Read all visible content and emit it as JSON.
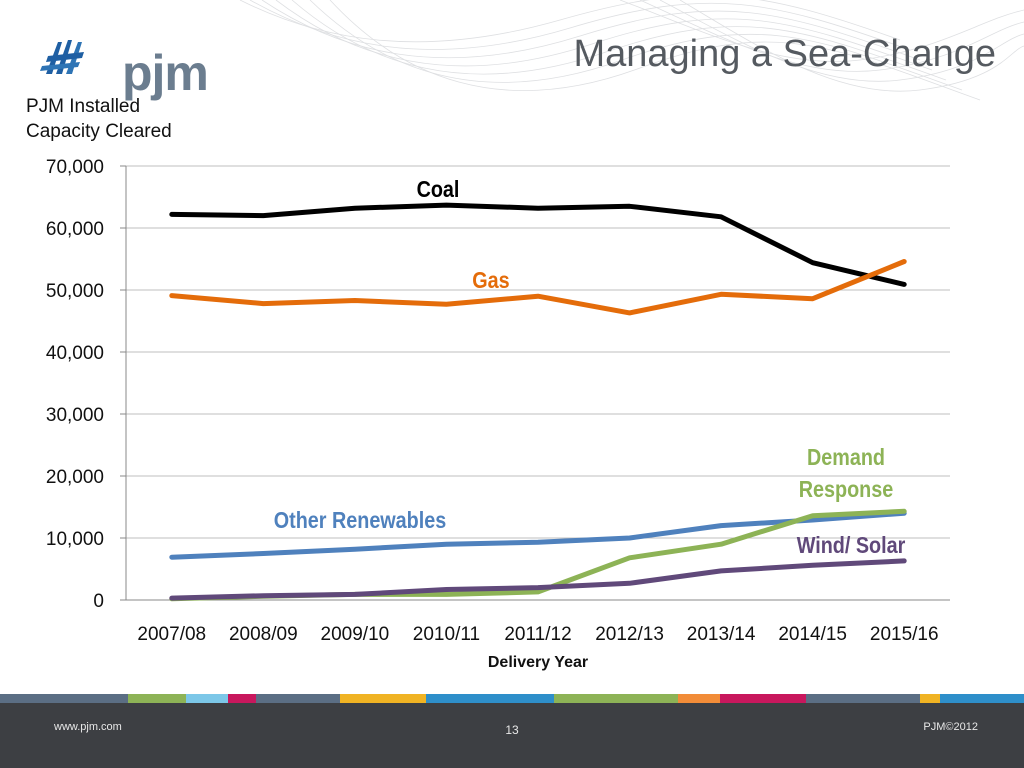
{
  "slide": {
    "title": "Managing a Sea-Change",
    "logo_text": "pjm",
    "chart_caption_line1": "PJM Installed",
    "chart_caption_line2": "Capacity Cleared"
  },
  "footer": {
    "website": "www.pjm.com",
    "page_number": "13",
    "copyright": "PJM©2012"
  },
  "colors": {
    "coal": "#000000",
    "gas": "#e46c0a",
    "other_renewables": "#4f81bd",
    "demand_response": "#8db356",
    "wind_solar": "#60497a",
    "grid": "#bfbfbf"
  },
  "chart_data": {
    "type": "line",
    "title": "",
    "xlabel": "Delivery Year",
    "ylabel": "",
    "ylim": [
      0,
      70000
    ],
    "yticks": [
      "0",
      "10,000",
      "20,000",
      "30,000",
      "40,000",
      "50,000",
      "60,000",
      "70,000"
    ],
    "categories": [
      "2007/08",
      "2008/09",
      "2009/10",
      "2010/11",
      "2011/12",
      "2012/13",
      "2013/14",
      "2014/15",
      "2015/16"
    ],
    "grid": true,
    "legend": "inline labels",
    "series": [
      {
        "name": "Coal",
        "color": "#000000",
        "values": [
          62200,
          62000,
          63200,
          63700,
          63200,
          63500,
          61800,
          54400,
          50900
        ]
      },
      {
        "name": "Gas",
        "color": "#e46c0a",
        "values": [
          49100,
          47800,
          48300,
          47700,
          49000,
          46300,
          49300,
          48600,
          54600
        ]
      },
      {
        "name": "Other Renewables",
        "color": "#4f81bd",
        "values": [
          6900,
          7500,
          8200,
          9000,
          9300,
          10000,
          12000,
          12900,
          14000
        ]
      },
      {
        "name": "Demand Response",
        "color": "#8db356",
        "values": [
          200,
          600,
          900,
          900,
          1300,
          6800,
          9000,
          13600,
          14300
        ]
      },
      {
        "name": "Wind/ Solar",
        "color": "#60497a",
        "values": [
          300,
          700,
          900,
          1700,
          2000,
          2700,
          4700,
          5600,
          6300
        ]
      }
    ],
    "annotations": [
      {
        "text": "Coal",
        "series": "Coal"
      },
      {
        "text": "Gas",
        "series": "Gas"
      },
      {
        "text": "Other Renewables",
        "series": "Other Renewables"
      },
      {
        "text": "Demand",
        "series": "Demand Response"
      },
      {
        "text": "Response",
        "series": "Demand Response"
      },
      {
        "text": "Wind/ Solar",
        "series": "Wind/ Solar"
      }
    ]
  }
}
